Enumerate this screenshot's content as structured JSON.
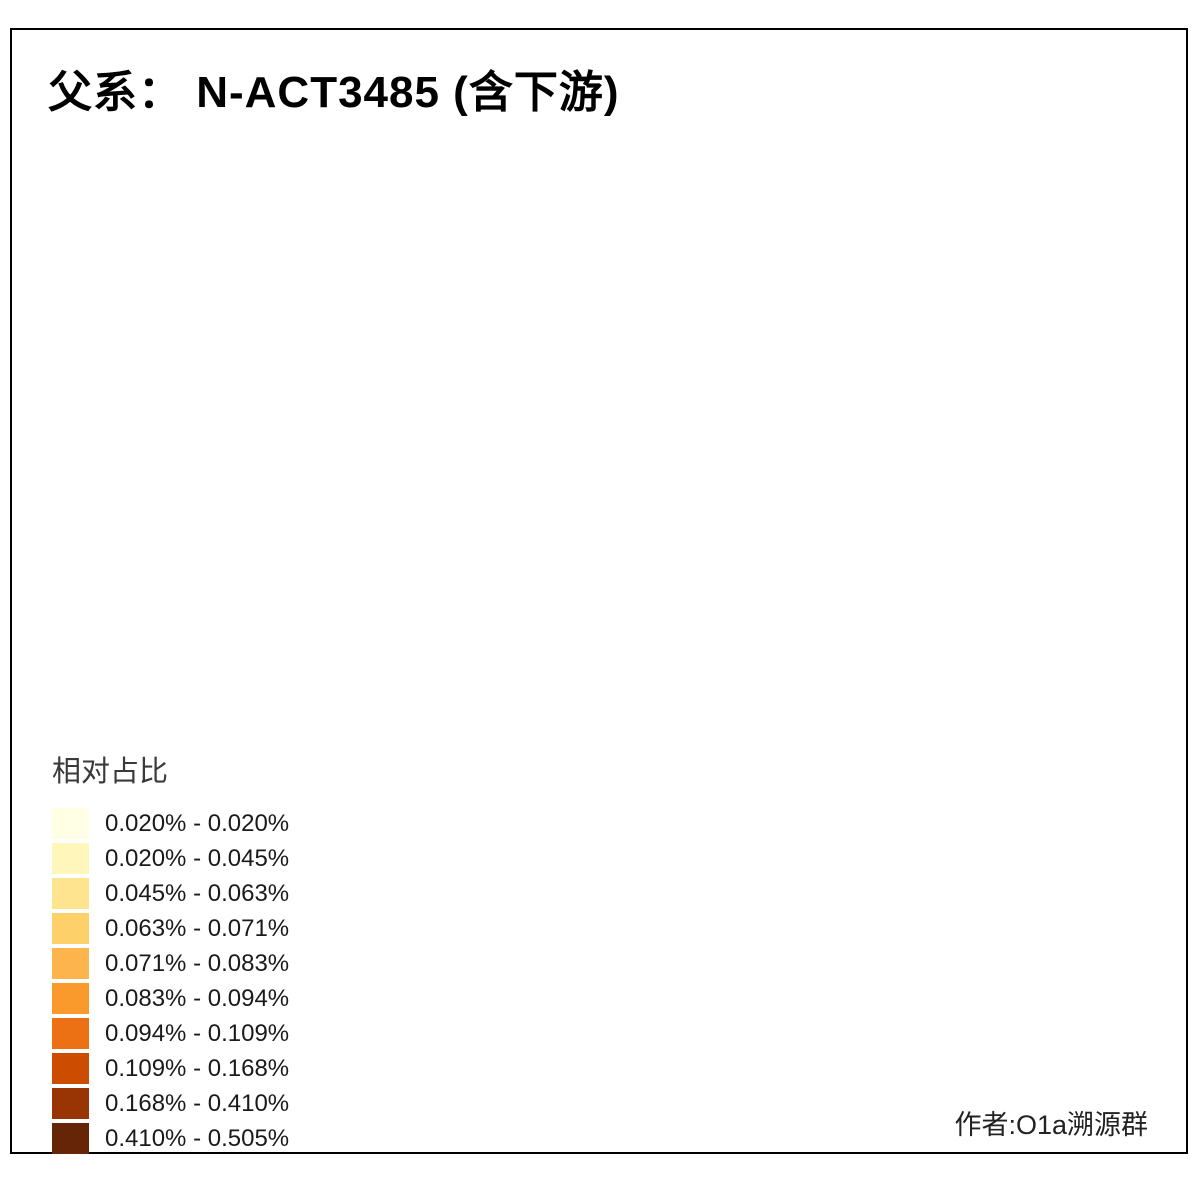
{
  "title": "父系： N-ACT3485 (含下游)",
  "attribution": "作者:O1a溯源群",
  "legend": {
    "title": "相对占比",
    "items": [
      {
        "label": "0.020% - 0.020%",
        "color": "#FFFFE5"
      },
      {
        "label": "0.020% - 0.045%",
        "color": "#FFF6BB"
      },
      {
        "label": "0.045% - 0.063%",
        "color": "#FEE48F"
      },
      {
        "label": "0.063% - 0.071%",
        "color": "#FED06A"
      },
      {
        "label": "0.071% - 0.083%",
        "color": "#FEB44C"
      },
      {
        "label": "0.083% - 0.094%",
        "color": "#FB9A2C"
      },
      {
        "label": "0.094% - 0.109%",
        "color": "#EC7014"
      },
      {
        "label": "0.109% - 0.168%",
        "color": "#CC4C02"
      },
      {
        "label": "0.168% - 0.410%",
        "color": "#993404"
      },
      {
        "label": "0.410% - 0.505%",
        "color": "#662506"
      }
    ]
  },
  "map": {
    "base_fill": "#D3D3D3",
    "border_color": "#999999",
    "highlights": [
      {
        "id": "beijing-area-1",
        "color": "#FFFFE5"
      },
      {
        "id": "beijing-area-2",
        "color": "#FFF6BB"
      },
      {
        "id": "hebei-east",
        "color": "#EC7014"
      },
      {
        "id": "shandong-peninsula",
        "color": "#FEE48F"
      },
      {
        "id": "shandong-west",
        "color": "#FB9A2C"
      },
      {
        "id": "shandong-southwest",
        "color": "#FED06A"
      },
      {
        "id": "henan-west",
        "color": "#FEE48F"
      },
      {
        "id": "jiangsu-coast",
        "color": "#FFF6BB"
      },
      {
        "id": "jiangsu-south",
        "color": "#EC7014"
      },
      {
        "id": "anhui-south",
        "color": "#FFF6BB"
      },
      {
        "id": "sichuan-west",
        "color": "#993404"
      },
      {
        "id": "sichuan-central",
        "color": "#CC4C02"
      },
      {
        "id": "yunnan-central",
        "color": "#EC7014"
      },
      {
        "id": "guizhou-north",
        "color": "#993404"
      },
      {
        "id": "guizhou-central",
        "color": "#662506"
      }
    ]
  }
}
